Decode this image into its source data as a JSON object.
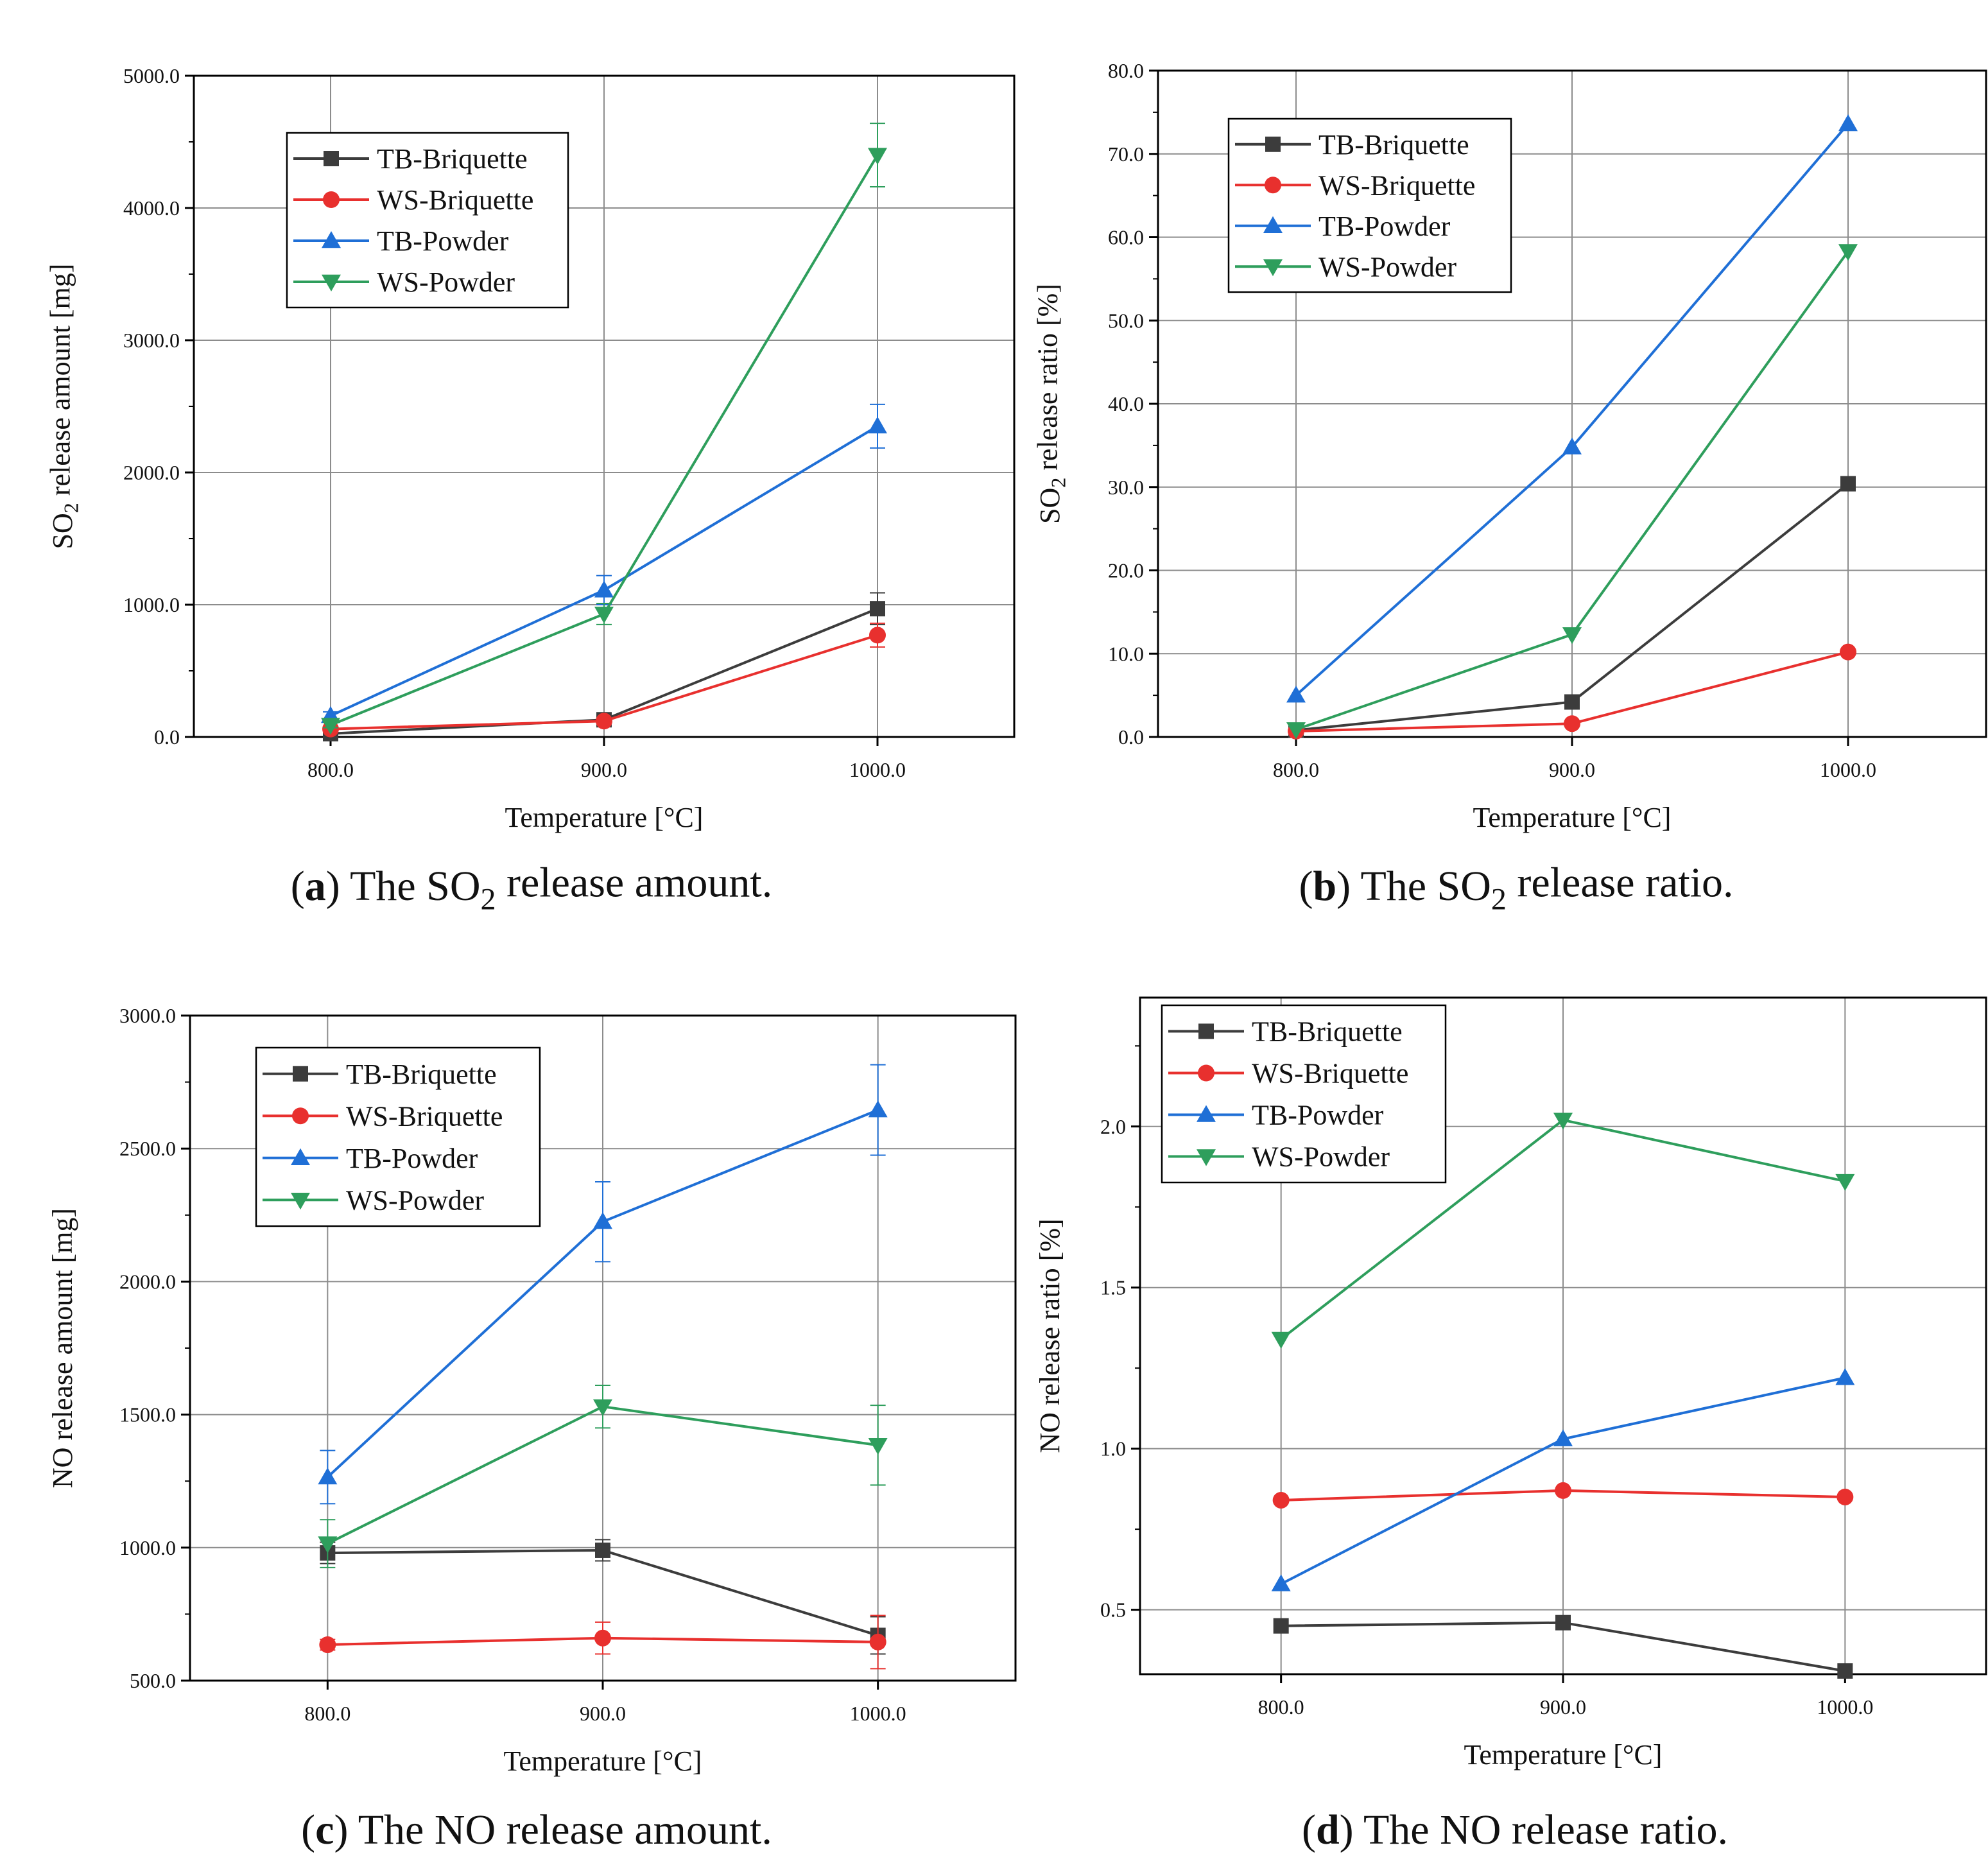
{
  "colors": {
    "TB-Briquette": "#3c3c3c",
    "WS-Briquette": "#e8302e",
    "TB-Powder": "#1f6fd6",
    "WS-Powder": "#2e9e5c"
  },
  "markers": {
    "TB-Briquette": "square",
    "WS-Briquette": "circle",
    "TB-Powder": "triangle-up",
    "WS-Powder": "triangle-down"
  },
  "chart_data": [
    {
      "id": "a",
      "type": "line",
      "caption": {
        "letter": "a",
        "before": "The SO",
        "sub": "2",
        "after": " release amount."
      },
      "xlabel": "Temperature [°C]",
      "ylabel": {
        "before": "SO",
        "sub": "2",
        "after": " release amount [mg]"
      },
      "x": [
        800,
        900,
        1000
      ],
      "xlim": [
        750,
        1050
      ],
      "xticks": [
        "800.0",
        "900.0",
        "1000.0"
      ],
      "ylim": [
        0,
        5000
      ],
      "yticks": [
        "0.0",
        "1000.0",
        "2000.0",
        "3000.0",
        "4000.0",
        "5000.0"
      ],
      "legend": [
        "TB-Briquette",
        "WS-Briquette",
        "TB-Powder",
        "WS-Powder"
      ],
      "legend_loc": "upper-left",
      "series": [
        {
          "name": "TB-Briquette",
          "values": [
            25,
            130,
            970
          ],
          "errors": [
            15,
            20,
            120
          ]
        },
        {
          "name": "WS-Briquette",
          "values": [
            60,
            120,
            770
          ],
          "errors": [
            15,
            20,
            90
          ]
        },
        {
          "name": "TB-Powder",
          "values": [
            160,
            1110,
            2350
          ],
          "errors": [
            30,
            110,
            165
          ]
        },
        {
          "name": "WS-Powder",
          "values": [
            90,
            930,
            4400
          ],
          "errors": [
            20,
            80,
            240
          ]
        }
      ]
    },
    {
      "id": "b",
      "type": "line",
      "caption": {
        "letter": "b",
        "before": "The SO",
        "sub": "2",
        "after": " release ratio."
      },
      "xlabel": "Temperature [°C]",
      "ylabel": {
        "before": "SO",
        "sub": "2",
        "after": " release ratio [%]"
      },
      "x": [
        800,
        900,
        1000
      ],
      "xlim": [
        750,
        1050
      ],
      "xticks": [
        "800.0",
        "900.0",
        "1000.0"
      ],
      "ylim": [
        0,
        80
      ],
      "yticks": [
        "0.0",
        "10.0",
        "20.0",
        "30.0",
        "40.0",
        "50.0",
        "60.0",
        "70.0",
        "80.0"
      ],
      "legend": [
        "TB-Briquette",
        "WS-Briquette",
        "TB-Powder",
        "WS-Powder"
      ],
      "legend_loc": "upper-left",
      "series": [
        {
          "name": "TB-Briquette",
          "values": [
            0.8,
            4.2,
            30.4
          ]
        },
        {
          "name": "WS-Briquette",
          "values": [
            0.7,
            1.6,
            10.2
          ]
        },
        {
          "name": "TB-Powder",
          "values": [
            5.0,
            34.8,
            73.6
          ]
        },
        {
          "name": "WS-Powder",
          "values": [
            0.9,
            12.3,
            58.3
          ]
        }
      ]
    },
    {
      "id": "c",
      "type": "line",
      "caption": {
        "letter": "c",
        "before": "The NO release amount.",
        "sub": "",
        "after": ""
      },
      "xlabel": "Temperature [°C]",
      "ylabel": {
        "before": "NO release amount [mg]",
        "sub": "",
        "after": ""
      },
      "x": [
        800,
        900,
        1000
      ],
      "xlim": [
        750,
        1050
      ],
      "xticks": [
        "800.0",
        "900.0",
        "1000.0"
      ],
      "ylim": [
        500,
        3000
      ],
      "yticks": [
        "500.0",
        "1000.0",
        "1500.0",
        "2000.0",
        "2500.0",
        "3000.0"
      ],
      "legend": [
        "TB-Briquette",
        "WS-Briquette",
        "TB-Powder",
        "WS-Powder"
      ],
      "legend_loc": "upper-left",
      "series": [
        {
          "name": "TB-Briquette",
          "values": [
            980,
            990,
            670
          ],
          "errors": [
            40,
            40,
            70
          ]
        },
        {
          "name": "WS-Briquette",
          "values": [
            635,
            660,
            645
          ],
          "errors": [
            20,
            60,
            100
          ]
        },
        {
          "name": "TB-Powder",
          "values": [
            1265,
            2225,
            2645
          ],
          "errors": [
            100,
            150,
            170
          ]
        },
        {
          "name": "WS-Powder",
          "values": [
            1015,
            1530,
            1385
          ],
          "errors": [
            90,
            80,
            150
          ]
        }
      ]
    },
    {
      "id": "d",
      "type": "line",
      "caption": {
        "letter": "d",
        "before": "The NO release ratio.",
        "sub": "",
        "after": ""
      },
      "xlabel": "Temperature [°C]",
      "ylabel": {
        "before": "NO release ratio [%]",
        "sub": "",
        "after": ""
      },
      "x": [
        800,
        900,
        1000
      ],
      "xlim": [
        750,
        1050
      ],
      "xticks": [
        "800.0",
        "900.0",
        "1000.0"
      ],
      "ylim": [
        0.3,
        2.4
      ],
      "yticks": [
        "0.5",
        "1.0",
        "1.5",
        "2.0"
      ],
      "ytick_values": [
        0.5,
        1.0,
        1.5,
        2.0
      ],
      "legend": [
        "TB-Briquette",
        "WS-Briquette",
        "TB-Powder",
        "WS-Powder"
      ],
      "legend_loc": "upper-left",
      "series": [
        {
          "name": "TB-Briquette",
          "values": [
            0.45,
            0.46,
            0.31
          ]
        },
        {
          "name": "WS-Briquette",
          "values": [
            0.84,
            0.87,
            0.85
          ]
        },
        {
          "name": "TB-Powder",
          "values": [
            0.58,
            1.03,
            1.22
          ]
        },
        {
          "name": "WS-Powder",
          "values": [
            1.34,
            2.02,
            1.83
          ]
        }
      ]
    }
  ]
}
